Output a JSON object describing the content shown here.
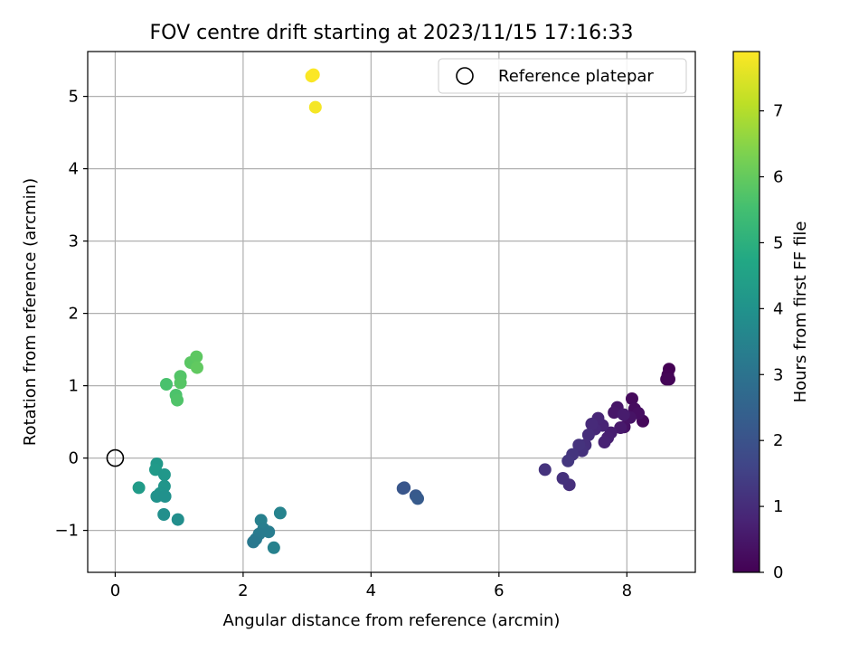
{
  "chart_data": {
    "type": "scatter",
    "title": "FOV centre drift starting at 2023/11/15 17:16:33",
    "xlabel": "Angular distance from reference (arcmin)",
    "ylabel": "Rotation from reference (arcmin)",
    "colorbar_label": "Hours from first FF file",
    "colormap": "viridis",
    "colorbar_range": [
      0,
      7.9
    ],
    "colorbar_ticks": [
      0,
      1,
      2,
      3,
      4,
      5,
      6,
      7
    ],
    "xlim": [
      -0.43,
      9.07
    ],
    "ylim": [
      -1.58,
      5.62
    ],
    "xticks": [
      0,
      2,
      4,
      6,
      8
    ],
    "yticks": [
      -1,
      0,
      1,
      2,
      3,
      4,
      5
    ],
    "grid": true,
    "legend": {
      "position": "top-right",
      "label": "Reference platepar"
    },
    "reference_point": {
      "x": 0,
      "y": 0
    },
    "points": [
      {
        "x": 8.66,
        "y": 1.23,
        "c": 0.0
      },
      {
        "x": 8.64,
        "y": 1.15,
        "c": 0.03
      },
      {
        "x": 8.62,
        "y": 1.09,
        "c": 0.06
      },
      {
        "x": 8.66,
        "y": 1.09,
        "c": 0.08
      },
      {
        "x": 8.25,
        "y": 0.51,
        "c": 0.15
      },
      {
        "x": 8.08,
        "y": 0.82,
        "c": 0.2
      },
      {
        "x": 8.12,
        "y": 0.68,
        "c": 0.25
      },
      {
        "x": 8.18,
        "y": 0.62,
        "c": 0.3
      },
      {
        "x": 7.96,
        "y": 0.43,
        "c": 0.35
      },
      {
        "x": 8.05,
        "y": 0.56,
        "c": 0.4
      },
      {
        "x": 7.85,
        "y": 0.7,
        "c": 0.45
      },
      {
        "x": 7.8,
        "y": 0.63,
        "c": 0.5
      },
      {
        "x": 7.9,
        "y": 0.42,
        "c": 0.55
      },
      {
        "x": 7.95,
        "y": 0.6,
        "c": 0.6
      },
      {
        "x": 7.75,
        "y": 0.35,
        "c": 0.65
      },
      {
        "x": 7.7,
        "y": 0.28,
        "c": 0.7
      },
      {
        "x": 7.65,
        "y": 0.22,
        "c": 0.75
      },
      {
        "x": 7.62,
        "y": 0.45,
        "c": 0.8
      },
      {
        "x": 7.55,
        "y": 0.55,
        "c": 0.85
      },
      {
        "x": 7.5,
        "y": 0.4,
        "c": 0.9
      },
      {
        "x": 7.45,
        "y": 0.47,
        "c": 0.95
      },
      {
        "x": 7.4,
        "y": 0.32,
        "c": 1.0
      },
      {
        "x": 7.35,
        "y": 0.18,
        "c": 1.05
      },
      {
        "x": 7.3,
        "y": 0.1,
        "c": 1.1
      },
      {
        "x": 7.25,
        "y": 0.18,
        "c": 1.15
      },
      {
        "x": 7.15,
        "y": 0.05,
        "c": 1.2
      },
      {
        "x": 7.08,
        "y": -0.04,
        "c": 1.25
      },
      {
        "x": 7.1,
        "y": -0.37,
        "c": 1.05
      },
      {
        "x": 7.0,
        "y": -0.28,
        "c": 1.1
      },
      {
        "x": 6.72,
        "y": -0.16,
        "c": 1.15
      },
      {
        "x": 4.5,
        "y": -0.42,
        "c": 2.1
      },
      {
        "x": 4.52,
        "y": -0.41,
        "c": 2.12
      },
      {
        "x": 4.7,
        "y": -0.52,
        "c": 2.2
      },
      {
        "x": 4.73,
        "y": -0.56,
        "c": 2.25
      },
      {
        "x": 2.28,
        "y": -0.86,
        "c": 3.4
      },
      {
        "x": 2.58,
        "y": -0.76,
        "c": 3.5
      },
      {
        "x": 2.32,
        "y": -0.98,
        "c": 3.35
      },
      {
        "x": 2.4,
        "y": -1.02,
        "c": 3.3
      },
      {
        "x": 2.25,
        "y": -1.05,
        "c": 3.25
      },
      {
        "x": 2.2,
        "y": -1.12,
        "c": 3.2
      },
      {
        "x": 2.16,
        "y": -1.16,
        "c": 3.15
      },
      {
        "x": 2.48,
        "y": -1.24,
        "c": 3.45
      },
      {
        "x": 0.37,
        "y": -0.41,
        "c": 4.3
      },
      {
        "x": 0.65,
        "y": -0.08,
        "c": 4.2
      },
      {
        "x": 0.63,
        "y": -0.16,
        "c": 4.25
      },
      {
        "x": 0.77,
        "y": -0.23,
        "c": 4.15
      },
      {
        "x": 0.77,
        "y": -0.39,
        "c": 4.1
      },
      {
        "x": 0.7,
        "y": -0.49,
        "c": 4.05
      },
      {
        "x": 0.65,
        "y": -0.53,
        "c": 4.0
      },
      {
        "x": 0.78,
        "y": -0.53,
        "c": 3.95
      },
      {
        "x": 0.76,
        "y": -0.78,
        "c": 3.9
      },
      {
        "x": 0.98,
        "y": -0.85,
        "c": 3.85
      },
      {
        "x": 0.8,
        "y": 1.02,
        "c": 5.6
      },
      {
        "x": 0.95,
        "y": 0.87,
        "c": 5.65
      },
      {
        "x": 0.97,
        "y": 0.8,
        "c": 5.7
      },
      {
        "x": 1.02,
        "y": 1.13,
        "c": 5.75
      },
      {
        "x": 1.02,
        "y": 1.04,
        "c": 5.8
      },
      {
        "x": 1.18,
        "y": 1.32,
        "c": 5.85
      },
      {
        "x": 1.27,
        "y": 1.4,
        "c": 5.9
      },
      {
        "x": 1.28,
        "y": 1.25,
        "c": 5.95
      },
      {
        "x": 3.07,
        "y": 5.28,
        "c": 7.85
      },
      {
        "x": 3.1,
        "y": 5.3,
        "c": 7.88
      },
      {
        "x": 3.13,
        "y": 4.85,
        "c": 7.8
      }
    ]
  }
}
